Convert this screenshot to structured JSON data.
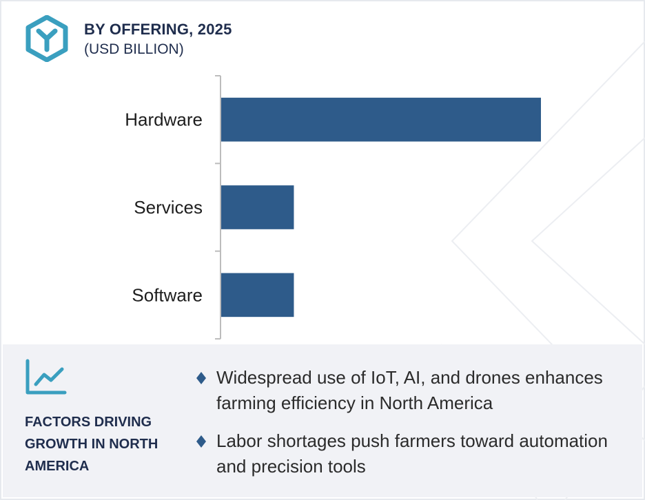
{
  "header": {
    "title": "BY OFFERING, 2025",
    "subtitle": "(USD BILLION)",
    "logo_icon": "hexagon-y-logo-icon"
  },
  "colors": {
    "bar": "#2e5b8a",
    "accent": "#3a9fbf",
    "heading": "#1f2d4d",
    "panel_bg": "#f1f2f6"
  },
  "chart_data": {
    "type": "bar",
    "orientation": "horizontal",
    "categories": [
      "Hardware",
      "Services",
      "Software"
    ],
    "values": [
      4.4,
      1.0,
      1.0
    ],
    "title": "BY OFFERING, 2025",
    "subtitle": "(USD BILLION)",
    "xlabel": "",
    "ylabel": "",
    "xlim": [
      0,
      5
    ],
    "grid": false,
    "legend": "none"
  },
  "factors": {
    "icon": "line-chart-icon",
    "title": "FACTORS DRIVING GROWTH IN NORTH AMERICA",
    "items": [
      "Widespread use of IoT, AI, and drones enhances farming efficiency in North America",
      "Labor shortages push farmers toward automation and precision tools"
    ]
  }
}
